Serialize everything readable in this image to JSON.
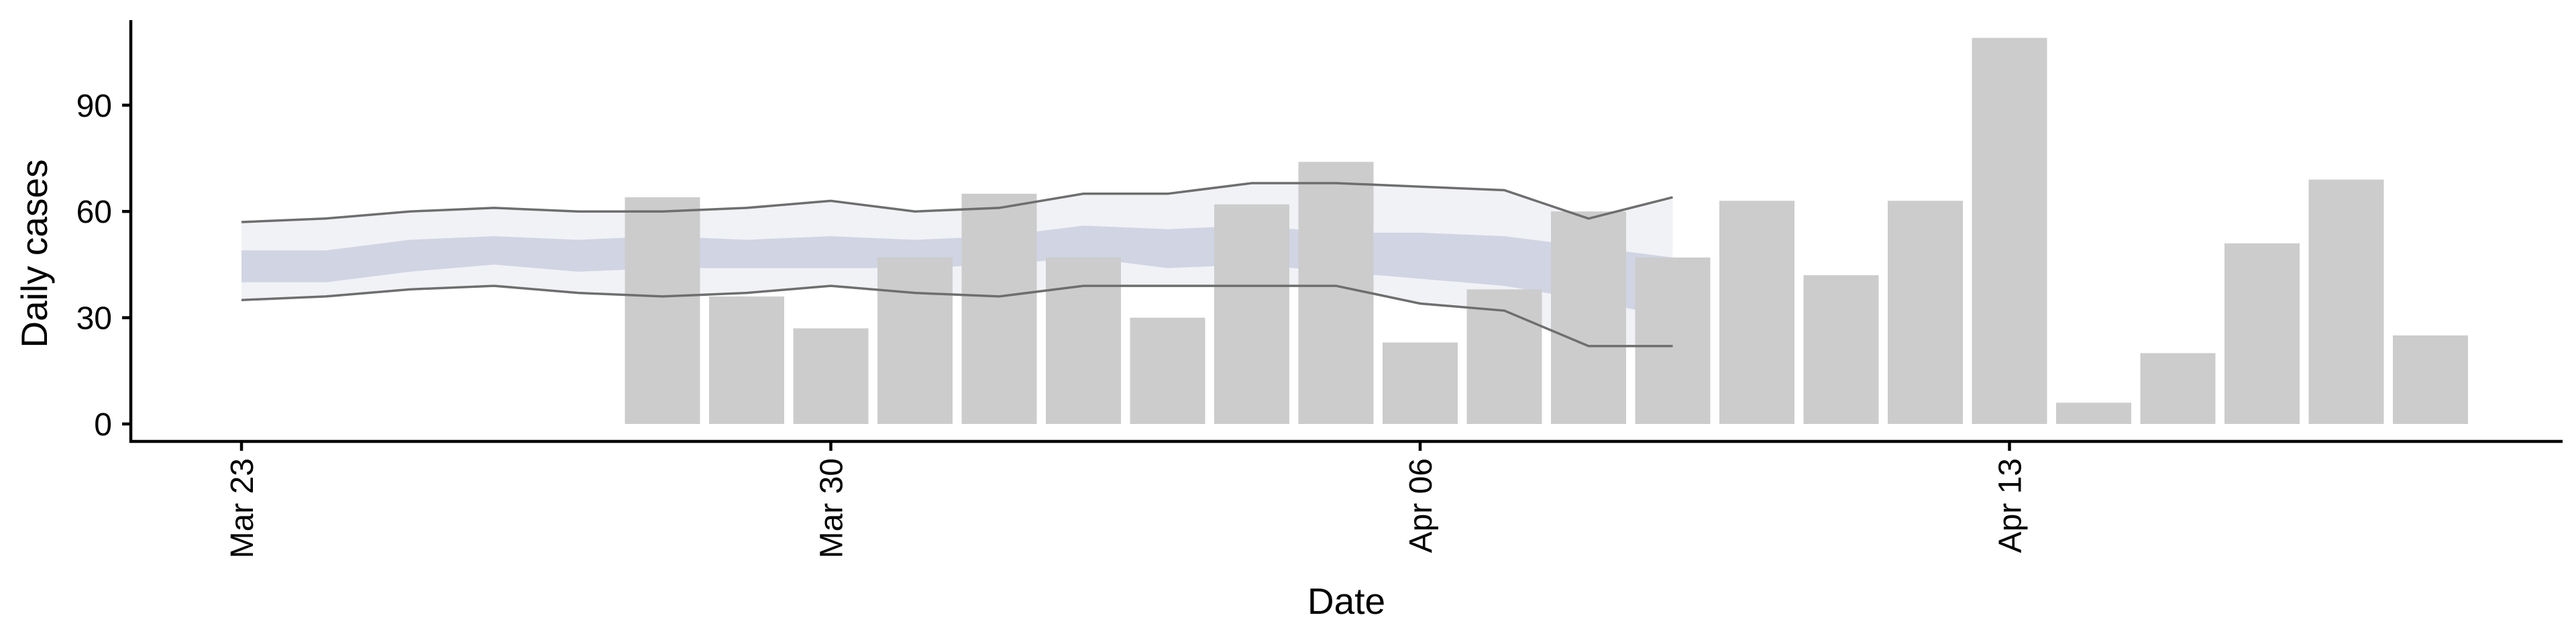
{
  "chart_data": {
    "type": "bar",
    "title": "",
    "xlabel": "Date",
    "ylabel": "Daily cases",
    "x_ticks": [
      "Mar 23",
      "Mar 30",
      "Apr 06",
      "Apr 13"
    ],
    "y_ticks": [
      0,
      30,
      60,
      90
    ],
    "ylim": [
      -5,
      114
    ],
    "grid": false,
    "legend": "none",
    "bars": {
      "dates": [
        "2020-03-28",
        "2020-03-29",
        "2020-03-30",
        "2020-03-31",
        "2020-04-01",
        "2020-04-02",
        "2020-04-03",
        "2020-04-04",
        "2020-04-05",
        "2020-04-06",
        "2020-04-07",
        "2020-04-08",
        "2020-04-09",
        "2020-04-10",
        "2020-04-11",
        "2020-04-12",
        "2020-04-13",
        "2020-04-14",
        "2020-04-15",
        "2020-04-16",
        "2020-04-17",
        "2020-04-18"
      ],
      "values": [
        64,
        36,
        27,
        47,
        65,
        47,
        30,
        62,
        74,
        23,
        38,
        60,
        47,
        63,
        42,
        63,
        109,
        6,
        20,
        51,
        69,
        25
      ],
      "color": "#cccccc"
    },
    "estimate": {
      "dates": [
        "2020-03-23",
        "2020-03-24",
        "2020-03-25",
        "2020-03-26",
        "2020-03-27",
        "2020-03-28",
        "2020-03-29",
        "2020-03-30",
        "2020-03-31",
        "2020-04-01",
        "2020-04-02",
        "2020-04-03",
        "2020-04-04",
        "2020-04-05",
        "2020-04-06",
        "2020-04-07",
        "2020-04-08",
        "2020-04-09"
      ],
      "outer_lower": [
        35,
        36,
        38,
        39,
        37,
        36,
        37,
        39,
        37,
        36,
        39,
        39,
        39,
        39,
        34,
        32,
        22,
        22
      ],
      "outer_upper": [
        57,
        58,
        60,
        61,
        60,
        60,
        61,
        63,
        60,
        61,
        65,
        65,
        68,
        68,
        67,
        66,
        58,
        64
      ],
      "inner_lower": [
        40,
        40,
        43,
        45,
        43,
        44,
        44,
        44,
        44,
        45,
        47,
        44,
        45,
        43,
        41,
        39,
        35,
        30
      ],
      "inner_upper": [
        49,
        49,
        52,
        53,
        52,
        53,
        52,
        53,
        52,
        53,
        56,
        55,
        56,
        54,
        54,
        53,
        50,
        47
      ],
      "outer_color": "#dfe2ec",
      "inner_color": "#a9b0cb",
      "edge_color": "#6e6e6e"
    }
  }
}
